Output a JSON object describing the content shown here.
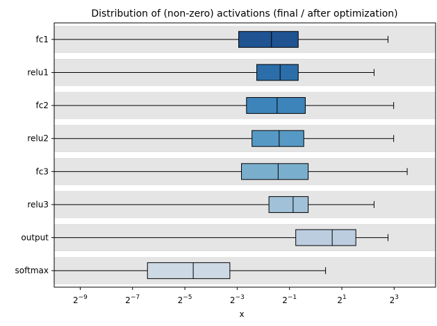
{
  "chart_data": {
    "type": "boxplot",
    "title": "Distribution of (non-zero) activations (final / after optimization)",
    "xlabel": "x",
    "ylabel": "",
    "x_scale": "log2",
    "xlim": [
      0.00098,
      24
    ],
    "x_ticks": [
      {
        "value": 0.001953125,
        "base": "2",
        "exp": "−9"
      },
      {
        "value": 0.0078125,
        "base": "2",
        "exp": "−7"
      },
      {
        "value": 0.03125,
        "base": "2",
        "exp": "−5"
      },
      {
        "value": 0.125,
        "base": "2",
        "exp": "−3"
      },
      {
        "value": 0.5,
        "base": "2",
        "exp": "−1"
      },
      {
        "value": 2,
        "base": "2",
        "exp": "1"
      },
      {
        "value": 8,
        "base": "2",
        "exp": "3"
      }
    ],
    "band_color": "#e5e5e5",
    "band_range": [
      0.00098,
      24
    ],
    "categories": [
      "fc1",
      "relu1",
      "fc2",
      "relu2",
      "fc3",
      "relu3",
      "output",
      "softmax"
    ],
    "boxes": [
      {
        "label": "fc1",
        "whisker_low": 0.00098,
        "q1": 0.13,
        "median": 0.31,
        "q3": 0.63,
        "whisker_high": 6.8,
        "color": "#1f5391"
      },
      {
        "label": "relu1",
        "whisker_low": 0.00098,
        "q1": 0.21,
        "median": 0.39,
        "q3": 0.63,
        "whisker_high": 4.7,
        "color": "#2b6ea9"
      },
      {
        "label": "fc2",
        "whisker_low": 0.00098,
        "q1": 0.16,
        "median": 0.36,
        "q3": 0.76,
        "whisker_high": 7.9,
        "color": "#3d84bb"
      },
      {
        "label": "relu2",
        "whisker_low": 0.00098,
        "q1": 0.185,
        "median": 0.38,
        "q3": 0.73,
        "whisker_high": 7.9,
        "color": "#5699c5"
      },
      {
        "label": "fc3",
        "whisker_low": 0.00098,
        "q1": 0.14,
        "median": 0.37,
        "q3": 0.82,
        "whisker_high": 11.3,
        "color": "#7aaecd"
      },
      {
        "label": "relu3",
        "whisker_low": 0.00098,
        "q1": 0.29,
        "median": 0.55,
        "q3": 0.82,
        "whisker_high": 4.7,
        "color": "#a1c1d8"
      },
      {
        "label": "output",
        "whisker_low": 0.00098,
        "q1": 0.59,
        "median": 1.55,
        "q3": 2.9,
        "whisker_high": 6.8,
        "color": "#bccde0"
      },
      {
        "label": "softmax",
        "whisker_low": 0.00098,
        "q1": 0.0116,
        "median": 0.039,
        "q3": 0.103,
        "whisker_high": 1.3,
        "color": "#cdd9e5"
      }
    ]
  }
}
